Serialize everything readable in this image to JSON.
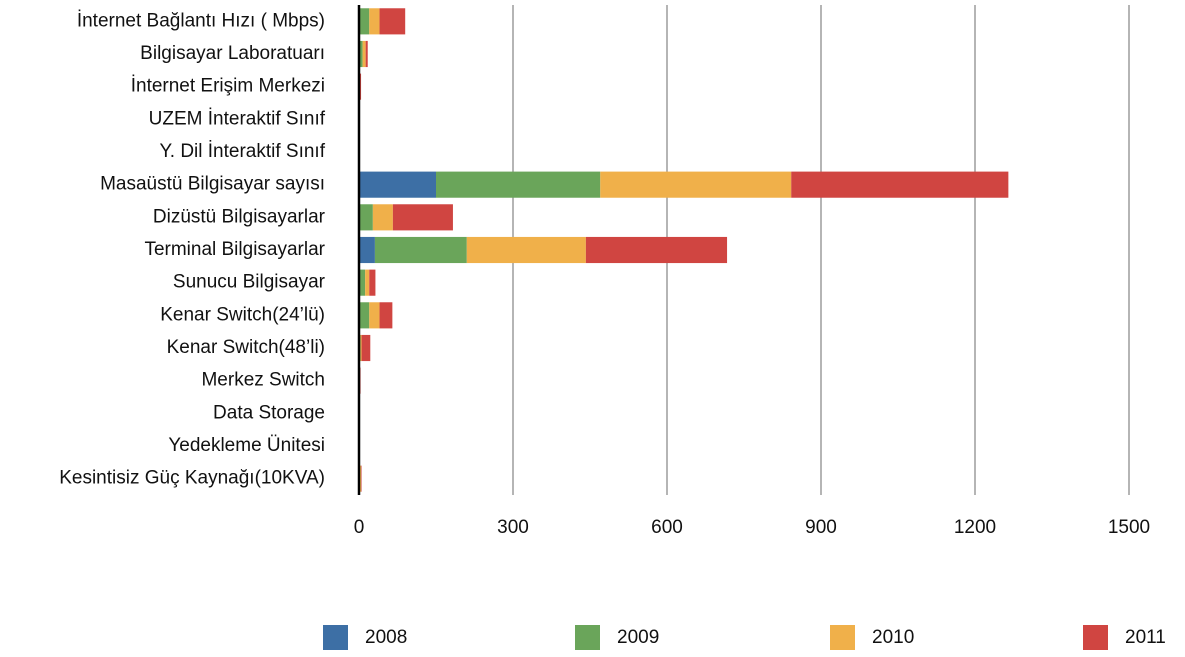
{
  "chart_data": {
    "type": "hbar_stacked",
    "categories": [
      "İnternet Bağlantı Hızı ( Mbps)",
      "Bilgisayar Laboratuarı",
      "İnternet Erişim Merkezi",
      "UZEM İnteraktif Sınıf",
      "Y. Dil İnteraktif Sınıf",
      "Masaüstü Bilgisayar sayısı",
      "Dizüstü Bilgisayarlar",
      "Terminal Bilgisayarlar",
      "Sunucu Bilgisayar",
      "Kenar Switch(24’lü)",
      "Kenar Switch(48’li)",
      "Merkez Switch",
      "Data Storage",
      "Yedekleme Ünitesi",
      "Kesintisiz Güç Kaynağı(10KVA)"
    ],
    "series": [
      {
        "name": "2008",
        "color": "#3d6fa5",
        "values": [
          0,
          0,
          0,
          0,
          0,
          150,
          0,
          31,
          0,
          0,
          0,
          0,
          0,
          0,
          0
        ]
      },
      {
        "name": "2009",
        "color": "#6aa55a",
        "values": [
          20,
          7,
          0,
          0,
          0,
          320,
          27,
          179,
          12,
          20,
          3,
          0,
          0,
          0,
          0
        ]
      },
      {
        "name": "2010",
        "color": "#f0b04a",
        "values": [
          20,
          6,
          0,
          0,
          0,
          372,
          39,
          232,
          8,
          20,
          2,
          0,
          0,
          0,
          4
        ]
      },
      {
        "name": "2011",
        "color": "#d04541",
        "values": [
          50,
          4,
          4,
          0,
          0,
          423,
          117,
          275,
          12,
          25,
          17,
          3,
          0,
          0,
          1
        ]
      }
    ],
    "xlim": [
      0,
      1500
    ],
    "xticks": [
      0,
      300,
      600,
      900,
      1200,
      1500
    ],
    "grid": true
  }
}
